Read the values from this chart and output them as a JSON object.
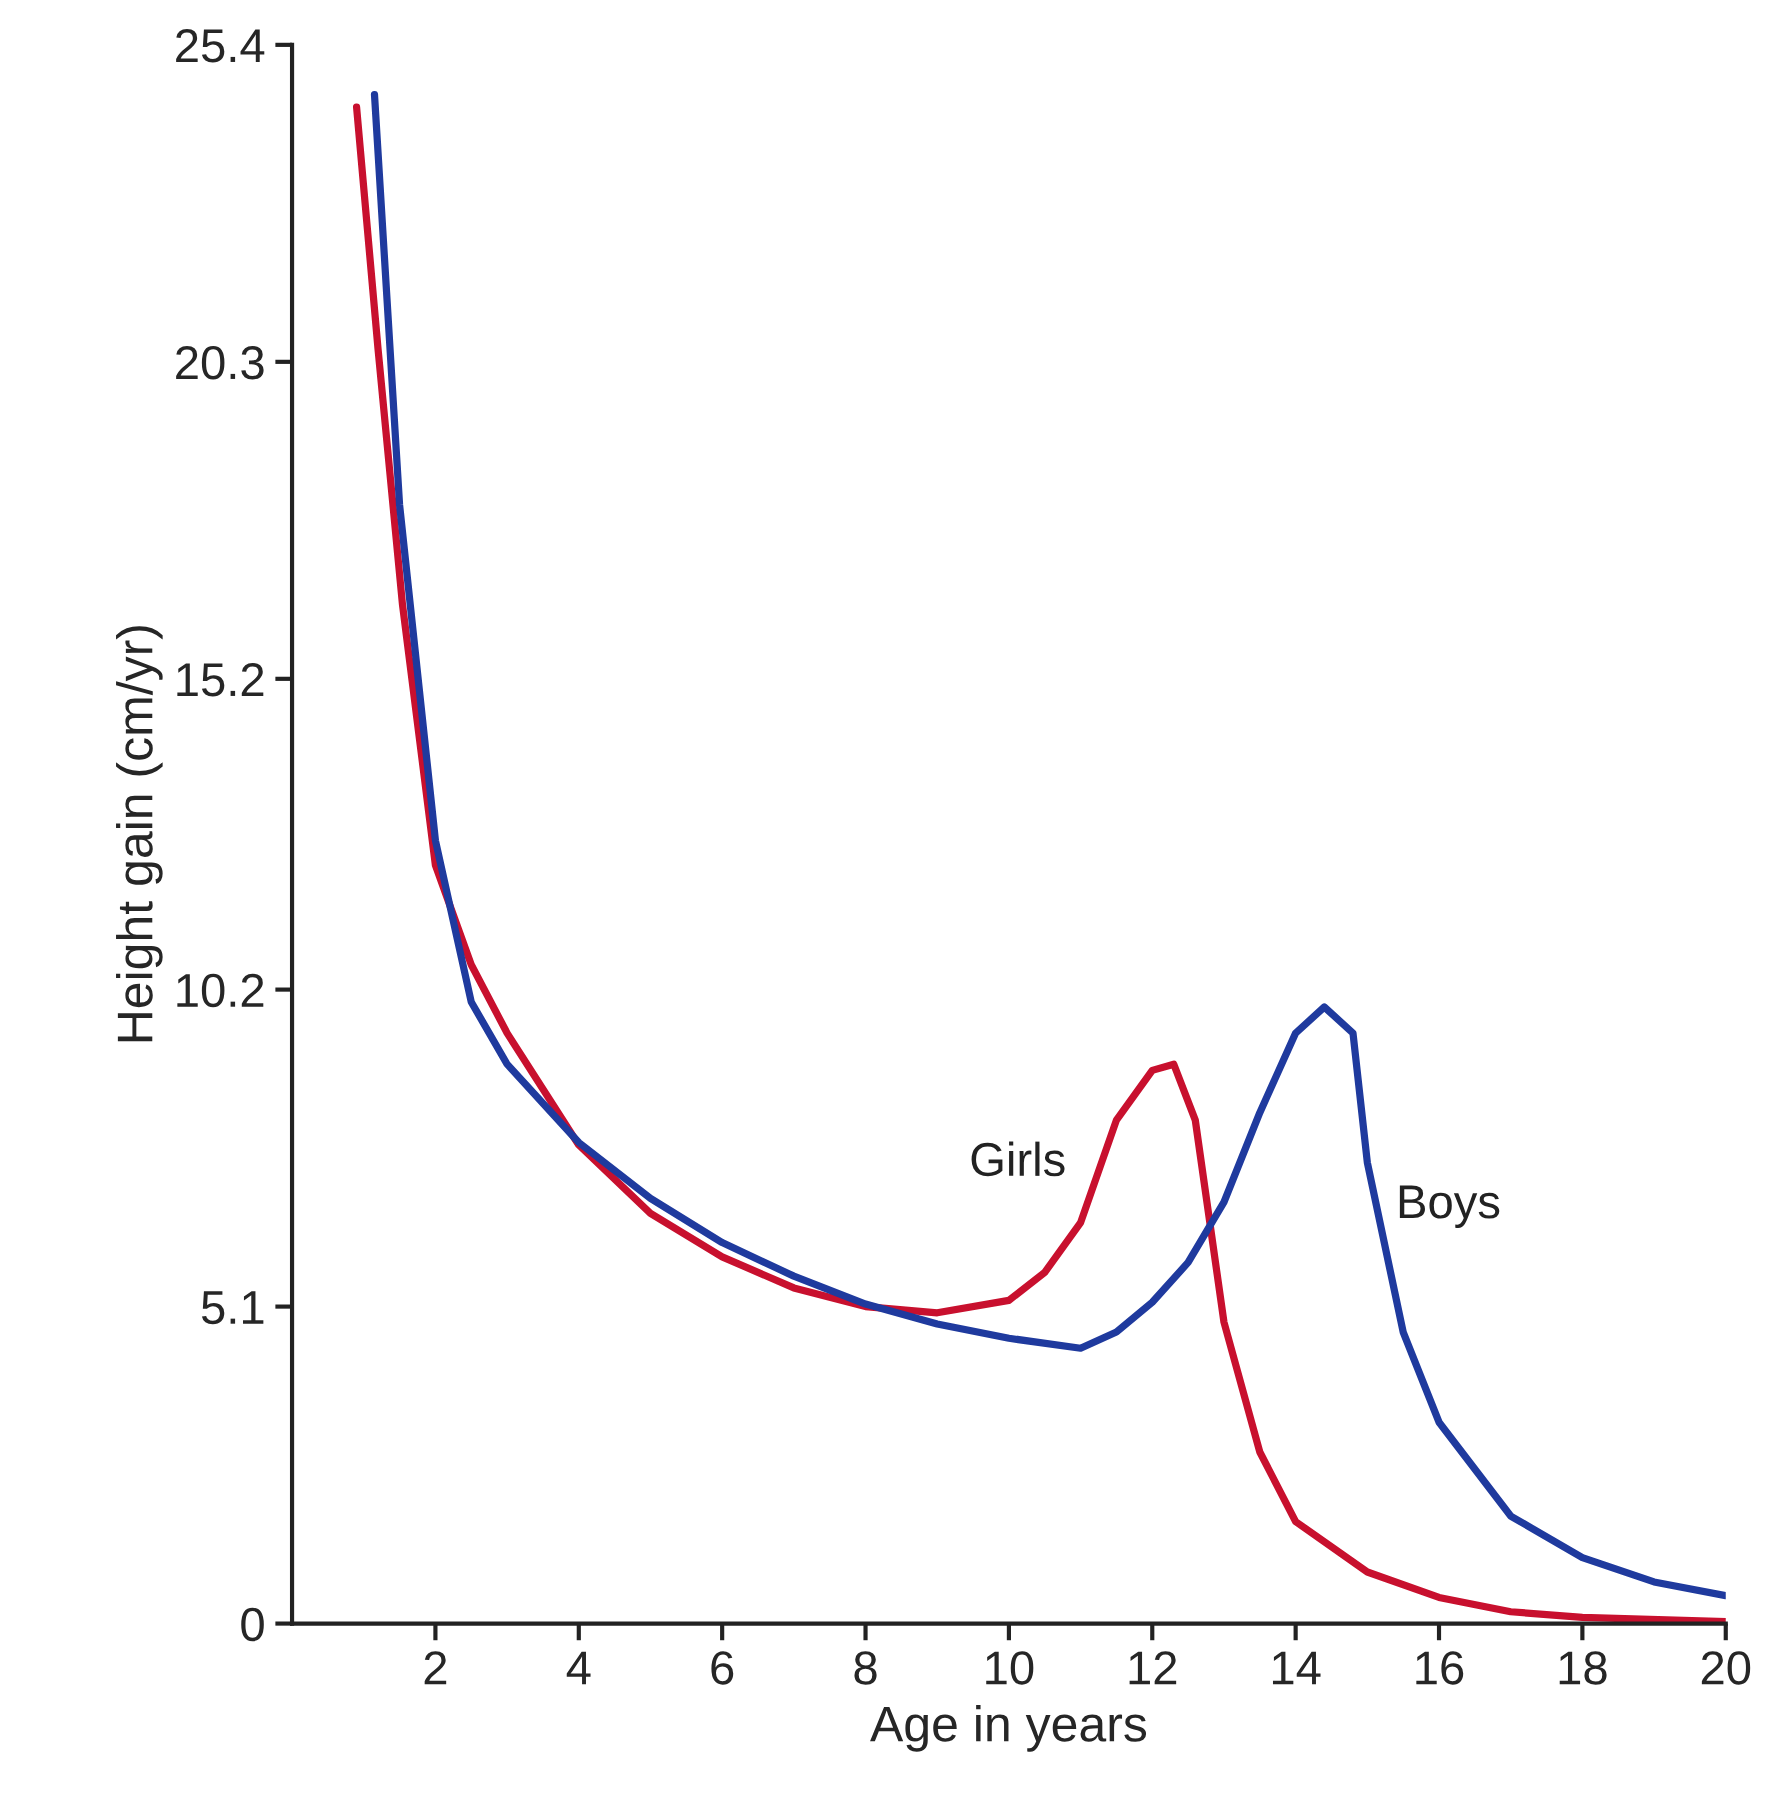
{
  "chart_data": {
    "type": "line",
    "xlabel": "Age in years",
    "ylabel": "Height gain (cm/yr)",
    "xlim": [
      0,
      20
    ],
    "ylim": [
      0,
      25.4
    ],
    "xticks": [
      2,
      4,
      6,
      8,
      10,
      12,
      14,
      16,
      18,
      20
    ],
    "yticks": [
      0,
      5.1,
      10.2,
      15.2,
      20.3,
      25.4
    ],
    "grid": false,
    "legend": false,
    "marker": "none",
    "line_style": "solid",
    "series": [
      {
        "name": "Girls",
        "color": "#c8102e",
        "x": [
          0.9,
          1.2,
          1.54,
          2,
          2.5,
          3,
          4,
          5,
          6,
          7,
          8,
          9,
          10,
          10.5,
          11,
          11.5,
          12,
          12.3,
          12.6,
          13,
          13.5,
          14,
          15,
          16,
          17,
          18,
          20
        ],
        "values": [
          24.4,
          20.5,
          16.4,
          12.2,
          10.6,
          9.5,
          7.7,
          6.6,
          5.9,
          5.4,
          5.1,
          5.0,
          5.2,
          5.65,
          6.45,
          8.1,
          8.9,
          9.0,
          8.1,
          4.85,
          2.76,
          1.64,
          0.83,
          0.42,
          0.19,
          0.1,
          0.03
        ]
      },
      {
        "name": "Boys",
        "color": "#1f3a9e",
        "x": [
          1.15,
          1.5,
          2,
          2.5,
          3,
          4,
          5,
          6,
          7,
          8,
          9,
          10,
          11,
          11.5,
          12,
          12.5,
          13,
          13.5,
          14,
          14.4,
          14.8,
          15,
          15.5,
          16,
          17,
          18,
          19,
          20
        ],
        "values": [
          24.6,
          18.0,
          12.6,
          10.0,
          9.0,
          7.74,
          6.84,
          6.13,
          5.59,
          5.14,
          4.82,
          4.59,
          4.43,
          4.69,
          5.17,
          5.81,
          6.78,
          8.22,
          9.5,
          9.92,
          9.5,
          7.42,
          4.69,
          3.24,
          1.73,
          1.06,
          0.67,
          0.45
        ]
      }
    ]
  }
}
